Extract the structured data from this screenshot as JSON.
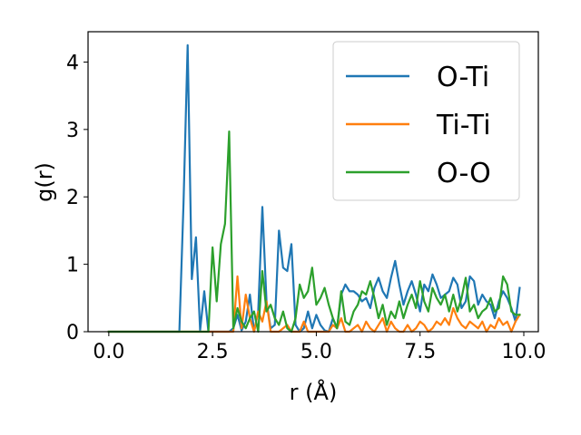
{
  "chart_data": {
    "type": "line",
    "title": "",
    "xlabel": "r (Å)",
    "ylabel": "g(r)",
    "xlim": [
      -0.5,
      10.35
    ],
    "ylim": [
      0,
      4.45
    ],
    "xticks": [
      0.0,
      2.5,
      5.0,
      7.5,
      10.0
    ],
    "xtick_labels": [
      "0.0",
      "2.5",
      "5.0",
      "7.5",
      "10.0"
    ],
    "yticks": [
      0,
      1,
      2,
      3,
      4
    ],
    "ytick_labels": [
      "0",
      "1",
      "2",
      "3",
      "4"
    ],
    "grid": false,
    "legend": {
      "position": "top-right"
    },
    "series": [
      {
        "name": "O-Ti",
        "color": "#1f77b4",
        "x": [
          0.0,
          0.1,
          0.2,
          0.3,
          0.4,
          0.5,
          0.6,
          0.7,
          0.8,
          0.9,
          1.0,
          1.1,
          1.2,
          1.3,
          1.4,
          1.5,
          1.6,
          1.7,
          1.8,
          1.9,
          2.0,
          2.1,
          2.2,
          2.3,
          2.4,
          2.5,
          2.6,
          2.7,
          2.8,
          2.9,
          3.0,
          3.1,
          3.2,
          3.3,
          3.4,
          3.5,
          3.6,
          3.7,
          3.8,
          3.9,
          4.0,
          4.1,
          4.2,
          4.3,
          4.4,
          4.5,
          4.6,
          4.7,
          4.8,
          4.9,
          5.0,
          5.1,
          5.2,
          5.3,
          5.4,
          5.5,
          5.6,
          5.7,
          5.8,
          5.9,
          6.0,
          6.1,
          6.2,
          6.3,
          6.4,
          6.5,
          6.6,
          6.7,
          6.8,
          6.9,
          7.0,
          7.1,
          7.2,
          7.3,
          7.4,
          7.5,
          7.6,
          7.7,
          7.8,
          7.9,
          8.0,
          8.1,
          8.2,
          8.3,
          8.4,
          8.5,
          8.6,
          8.7,
          8.8,
          8.9,
          9.0,
          9.1,
          9.2,
          9.3,
          9.4,
          9.5,
          9.6,
          9.7,
          9.8,
          9.9
        ],
        "values": [
          0,
          0,
          0,
          0,
          0,
          0,
          0,
          0,
          0,
          0,
          0,
          0,
          0,
          0,
          0,
          0,
          0,
          0,
          1.9,
          4.25,
          0.78,
          1.4,
          0.02,
          0.6,
          0,
          0,
          0,
          0,
          0,
          0,
          0.05,
          0.25,
          0.02,
          0.15,
          0.55,
          0,
          0.3,
          1.85,
          0.45,
          0.05,
          0.1,
          1.5,
          0.95,
          0.9,
          1.3,
          0.1,
          0,
          0.05,
          0.3,
          0.05,
          0.25,
          0.1,
          0.02,
          0,
          0.2,
          0.05,
          0.55,
          0.7,
          0.6,
          0.6,
          0.55,
          0.45,
          0.5,
          0.35,
          0.65,
          0.8,
          0.6,
          0.5,
          0.8,
          1.05,
          0.7,
          0.4,
          0.6,
          0.75,
          0.55,
          0.3,
          0.7,
          0.6,
          0.85,
          0.7,
          0.5,
          0.55,
          0.6,
          0.8,
          0.7,
          0.35,
          0.45,
          0.82,
          0.75,
          0.4,
          0.55,
          0.45,
          0.4,
          0.2,
          0.45,
          0.6,
          0.5,
          0.35,
          0.15,
          0.65
        ]
      },
      {
        "name": "Ti-Ti",
        "color": "#ff7f0e",
        "x": [
          0.0,
          0.1,
          0.2,
          0.3,
          0.4,
          0.5,
          0.6,
          0.7,
          0.8,
          0.9,
          1.0,
          1.1,
          1.2,
          1.3,
          1.4,
          1.5,
          1.6,
          1.7,
          1.8,
          1.9,
          2.0,
          2.1,
          2.2,
          2.3,
          2.4,
          2.5,
          2.6,
          2.7,
          2.8,
          2.9,
          3.0,
          3.1,
          3.2,
          3.3,
          3.4,
          3.5,
          3.6,
          3.7,
          3.8,
          3.9,
          4.0,
          4.1,
          4.2,
          4.3,
          4.4,
          4.5,
          4.6,
          4.7,
          4.8,
          4.9,
          5.0,
          5.1,
          5.2,
          5.3,
          5.4,
          5.5,
          5.6,
          5.7,
          5.8,
          5.9,
          6.0,
          6.1,
          6.2,
          6.3,
          6.4,
          6.5,
          6.6,
          6.7,
          6.8,
          6.9,
          7.0,
          7.1,
          7.2,
          7.3,
          7.4,
          7.5,
          7.6,
          7.7,
          7.8,
          7.9,
          8.0,
          8.1,
          8.2,
          8.3,
          8.4,
          8.5,
          8.6,
          8.7,
          8.8,
          8.9,
          9.0,
          9.1,
          9.2,
          9.3,
          9.4,
          9.5,
          9.6,
          9.7,
          9.8,
          9.9
        ],
        "values": [
          0,
          0,
          0,
          0,
          0,
          0,
          0,
          0,
          0,
          0,
          0,
          0,
          0,
          0,
          0,
          0,
          0,
          0,
          0,
          0,
          0,
          0,
          0,
          0,
          0,
          0,
          0,
          0,
          0,
          0,
          0,
          0.82,
          0.05,
          0.55,
          0.2,
          0,
          0.3,
          0.15,
          0.45,
          0,
          0,
          0,
          0.05,
          0.1,
          0,
          0,
          0,
          0.15,
          0,
          0,
          0,
          0,
          0,
          0,
          0.1,
          0.05,
          0.2,
          0,
          0,
          0.05,
          0.1,
          0,
          0.15,
          0.05,
          0,
          0.1,
          0.2,
          0,
          0.15,
          0.05,
          0,
          0,
          0.1,
          0,
          0.05,
          0.15,
          0.1,
          0,
          0.05,
          0.15,
          0.1,
          0.2,
          0.1,
          0.35,
          0.2,
          0.1,
          0.05,
          0.15,
          0.1,
          0.05,
          0.15,
          0,
          0.1,
          0.05,
          0.2,
          0.1,
          0.15,
          0,
          0.15,
          0.25
        ]
      },
      {
        "name": "O-O",
        "color": "#2ca02c",
        "x": [
          0.0,
          0.1,
          0.2,
          0.3,
          0.4,
          0.5,
          0.6,
          0.7,
          0.8,
          0.9,
          1.0,
          1.1,
          1.2,
          1.3,
          1.4,
          1.5,
          1.6,
          1.7,
          1.8,
          1.9,
          2.0,
          2.1,
          2.2,
          2.3,
          2.4,
          2.5,
          2.6,
          2.7,
          2.8,
          2.9,
          3.0,
          3.1,
          3.2,
          3.3,
          3.4,
          3.5,
          3.6,
          3.7,
          3.8,
          3.9,
          4.0,
          4.1,
          4.2,
          4.3,
          4.4,
          4.5,
          4.6,
          4.7,
          4.8,
          4.9,
          5.0,
          5.1,
          5.2,
          5.3,
          5.4,
          5.5,
          5.6,
          5.7,
          5.8,
          5.9,
          6.0,
          6.1,
          6.2,
          6.3,
          6.4,
          6.5,
          6.6,
          6.7,
          6.8,
          6.9,
          7.0,
          7.1,
          7.2,
          7.3,
          7.4,
          7.5,
          7.6,
          7.7,
          7.8,
          7.9,
          8.0,
          8.1,
          8.2,
          8.3,
          8.4,
          8.5,
          8.6,
          8.7,
          8.8,
          8.9,
          9.0,
          9.1,
          9.2,
          9.3,
          9.4,
          9.5,
          9.6,
          9.7,
          9.8,
          9.9
        ],
        "values": [
          0,
          0,
          0,
          0,
          0,
          0,
          0,
          0,
          0,
          0,
          0,
          0,
          0,
          0,
          0,
          0,
          0,
          0,
          0,
          0,
          0,
          0,
          0,
          0,
          0,
          1.25,
          0.45,
          1.3,
          1.6,
          2.97,
          0.05,
          0.35,
          0.15,
          0.05,
          0.2,
          0.3,
          0,
          0.9,
          0.3,
          0.4,
          0.2,
          0.1,
          0.3,
          0.05,
          0,
          0.2,
          0.7,
          0.5,
          0.6,
          0.95,
          0.4,
          0.5,
          0.65,
          0.4,
          0.2,
          0.05,
          0.6,
          0.15,
          0.1,
          0.3,
          0.4,
          0.6,
          0.55,
          0.75,
          0.5,
          0.2,
          0.4,
          0.1,
          0.3,
          0.2,
          0.45,
          0.2,
          0.4,
          0.55,
          0.35,
          0.75,
          0.45,
          0.3,
          0.65,
          0.5,
          0.4,
          0.55,
          0.3,
          0.55,
          0.3,
          0.5,
          0.8,
          0.3,
          0.4,
          0.2,
          0.3,
          0.35,
          0.5,
          0.3,
          0.35,
          0.82,
          0.7,
          0.3,
          0.25,
          0.25
        ]
      }
    ]
  }
}
